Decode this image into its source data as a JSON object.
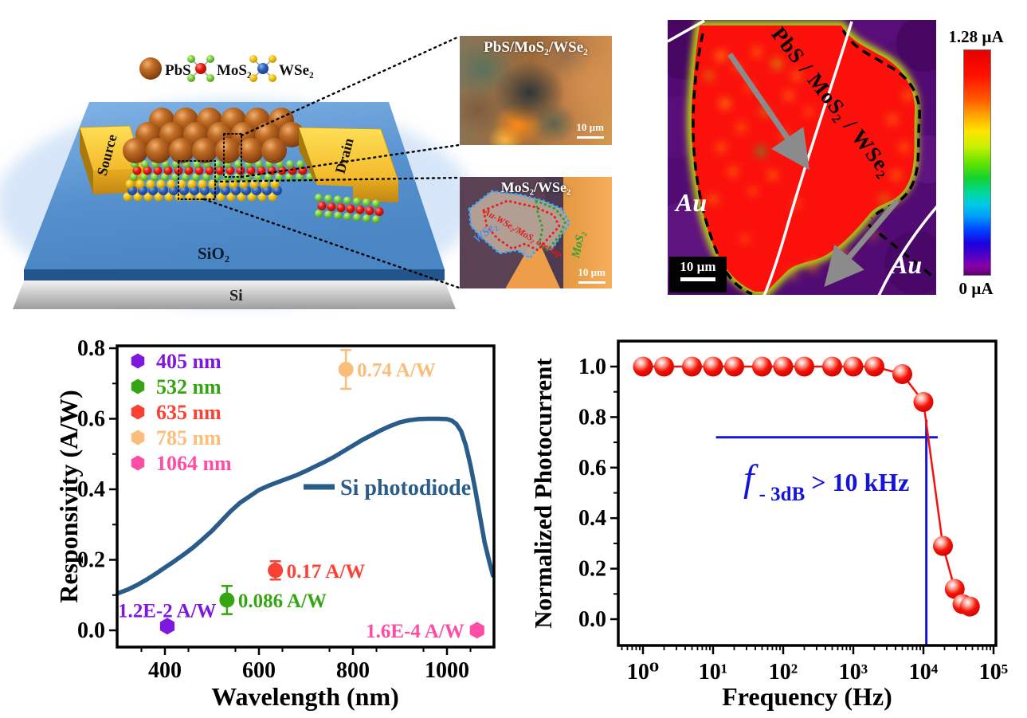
{
  "schematic": {
    "legend": [
      {
        "label": "PbS"
      },
      {
        "label": "MoS₂"
      },
      {
        "label": "WSe₂"
      }
    ],
    "source_label": "Source",
    "drain_label": "Drain",
    "sio2_label": "SiO₂",
    "si_label": "Si",
    "inset_top": {
      "title": "PbS/MoS₂/WSe₂",
      "scale_label": "10 µm"
    },
    "inset_bottom": {
      "title": "MoS₂/WSe₂",
      "scale_label": "10 µm",
      "regions": [
        {
          "label": "WSe₂",
          "color": "#4a8ade"
        },
        {
          "label": "Au-WSe₂/MoS₂ overlap",
          "color": "#e01818"
        },
        {
          "label": "MoS₂",
          "color": "#2fa02f"
        }
      ]
    }
  },
  "photocurrent_map": {
    "overlay_label": "PbS / MoS₂ / WSe₂",
    "electrode_labels": [
      "Au",
      "Au"
    ],
    "scale_label": "10 µm",
    "colorbar": {
      "max_label": "1.28 µA",
      "min_label": "0 µA"
    }
  },
  "chart_data": [
    {
      "type": "scatter",
      "xlabel": "Wavelength (nm)",
      "ylabel": "Responsivity (A/W)",
      "xlim": [
        295,
        1100
      ],
      "ylim": [
        -0.055,
        0.805
      ],
      "xticks": [
        400,
        600,
        800,
        1000
      ],
      "yticks": [
        0.0,
        0.2,
        0.4,
        0.6,
        0.8
      ],
      "grid": false,
      "legend_position": "upper-left",
      "legend": [
        {
          "label": "405 nm",
          "color": "#7e17e0"
        },
        {
          "label": "532 nm",
          "color": "#36a513"
        },
        {
          "label": "635 nm",
          "color": "#fb4133"
        },
        {
          "label": "785 nm",
          "color": "#fbbd7a"
        },
        {
          "label": "1064 nm",
          "color": "#fd4da5"
        }
      ],
      "points": [
        {
          "wavelength": 405,
          "value": 0.012,
          "error": 0.012,
          "label": "1.2E-2 A/W",
          "color": "#7e17e0",
          "marker": "hexagon",
          "label_side": "above-left"
        },
        {
          "wavelength": 532,
          "value": 0.086,
          "error": 0.04,
          "label": "0.086 A/W",
          "color": "#36a513",
          "marker": "circle",
          "label_side": "right"
        },
        {
          "wavelength": 635,
          "value": 0.17,
          "error": 0.026,
          "label": "0.17 A/W",
          "color": "#fb4133",
          "marker": "circle",
          "label_side": "right"
        },
        {
          "wavelength": 785,
          "value": 0.74,
          "error": 0.055,
          "label": "0.74 A/W",
          "color": "#fbbd7a",
          "marker": "circle",
          "label_side": "right"
        },
        {
          "wavelength": 1064,
          "value": 0.00016,
          "error": 0,
          "label": "1.6E-4 A/W",
          "color": "#fd4da5",
          "marker": "hexagon",
          "label_side": "left"
        }
      ],
      "si_curve": {
        "label": "Si photodiode",
        "color": "#2a5c8a",
        "points": [
          [
            300,
            0.105
          ],
          [
            320,
            0.115
          ],
          [
            340,
            0.128
          ],
          [
            360,
            0.143
          ],
          [
            380,
            0.16
          ],
          [
            400,
            0.178
          ],
          [
            420,
            0.196
          ],
          [
            440,
            0.215
          ],
          [
            460,
            0.235
          ],
          [
            480,
            0.258
          ],
          [
            500,
            0.282
          ],
          [
            520,
            0.31
          ],
          [
            540,
            0.338
          ],
          [
            560,
            0.362
          ],
          [
            580,
            0.38
          ],
          [
            600,
            0.398
          ],
          [
            620,
            0.41
          ],
          [
            640,
            0.42
          ],
          [
            660,
            0.43
          ],
          [
            680,
            0.44
          ],
          [
            700,
            0.452
          ],
          [
            720,
            0.465
          ],
          [
            740,
            0.478
          ],
          [
            760,
            0.492
          ],
          [
            780,
            0.508
          ],
          [
            800,
            0.524
          ],
          [
            820,
            0.54
          ],
          [
            840,
            0.554
          ],
          [
            860,
            0.568
          ],
          [
            880,
            0.58
          ],
          [
            900,
            0.59
          ],
          [
            920,
            0.596
          ],
          [
            940,
            0.599
          ],
          [
            960,
            0.6
          ],
          [
            980,
            0.6
          ],
          [
            1000,
            0.599
          ],
          [
            1010,
            0.595
          ],
          [
            1020,
            0.585
          ],
          [
            1030,
            0.565
          ],
          [
            1040,
            0.525
          ],
          [
            1050,
            0.468
          ],
          [
            1060,
            0.4
          ],
          [
            1070,
            0.325
          ],
          [
            1080,
            0.25
          ],
          [
            1090,
            0.195
          ],
          [
            1098,
            0.155
          ]
        ]
      }
    },
    {
      "type": "line",
      "xlabel": "Frequency (Hz)",
      "ylabel": "Normalized Photocurrent",
      "xscale": "log",
      "xtick_labels": [
        "10⁰",
        "10¹",
        "10²",
        "10³",
        "10⁴",
        "10⁵"
      ],
      "xtick_exponents": [
        0,
        1,
        2,
        3,
        4,
        5
      ],
      "yticks": [
        0.0,
        0.2,
        0.4,
        0.6,
        0.8,
        1.0
      ],
      "series": {
        "name": "normalized photocurrent",
        "color": "#f50f0f",
        "x": [
          1,
          2,
          5,
          10,
          20,
          50,
          100,
          200,
          500,
          1000,
          2000,
          5000,
          10000,
          19000,
          28000,
          36000,
          46000
        ],
        "y": [
          1.0,
          1.0,
          1.0,
          1.0,
          1.0,
          1.0,
          1.0,
          1.0,
          1.0,
          1.0,
          1.0,
          0.97,
          0.86,
          0.29,
          0.12,
          0.06,
          0.05
        ]
      },
      "annotation": {
        "f": "f",
        "sub": "- 3dB",
        "gt": "> 10 kHz",
        "color": "#1515d8",
        "hline_y": 0.72,
        "hline_x": [
          11,
          16000
        ],
        "vline_x": 11000
      }
    }
  ]
}
